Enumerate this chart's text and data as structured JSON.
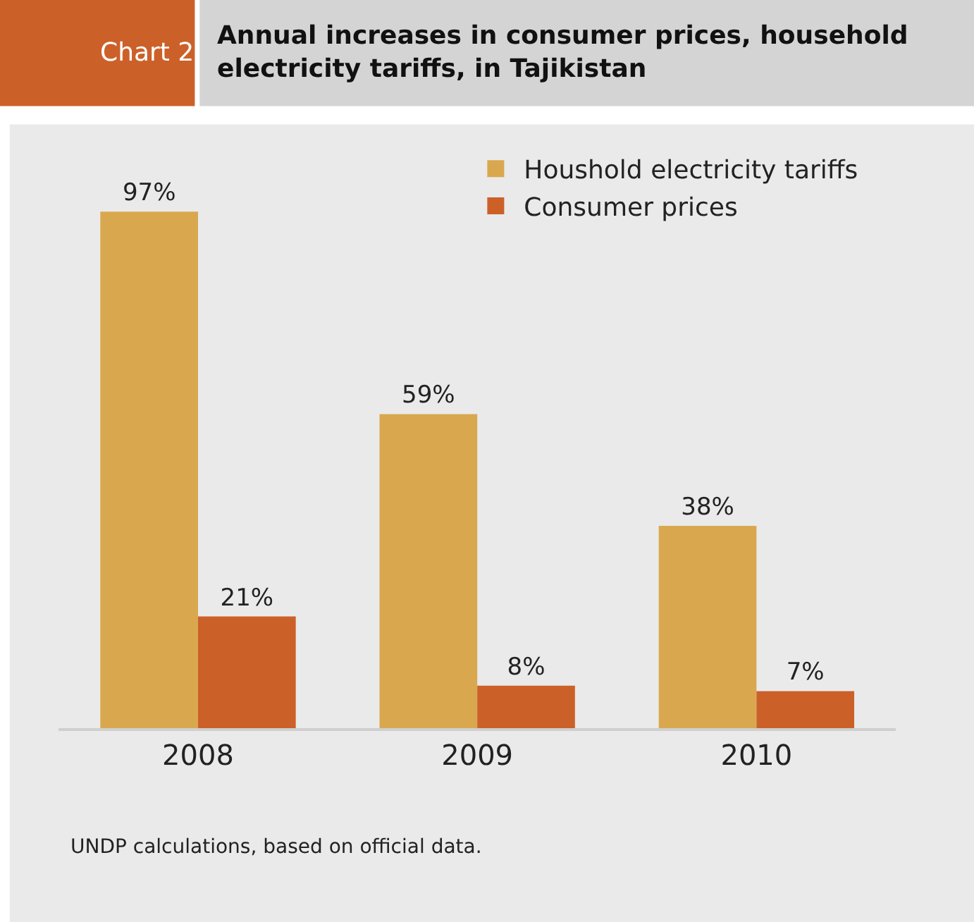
{
  "chart_data": {
    "type": "bar",
    "title": "Annual increases in consumer prices, household electricity tariffs, in Tajikistan",
    "annotations": [
      "Chart 2",
      "UNDP calculations, based on official data."
    ],
    "categories": [
      "2008",
      "2009",
      "2010"
    ],
    "series": [
      {
        "name": "Houshold electricity tariffs",
        "color": "#d9a84e",
        "values": [
          97,
          59,
          38
        ],
        "value_labels": [
          "97%",
          "59%",
          "38%"
        ]
      },
      {
        "name": "Consumer prices",
        "color": "#cc6029",
        "values": [
          21,
          8,
          7
        ],
        "value_labels": [
          "21%",
          "8%",
          "7%"
        ]
      }
    ],
    "legend": "top right"
  }
}
